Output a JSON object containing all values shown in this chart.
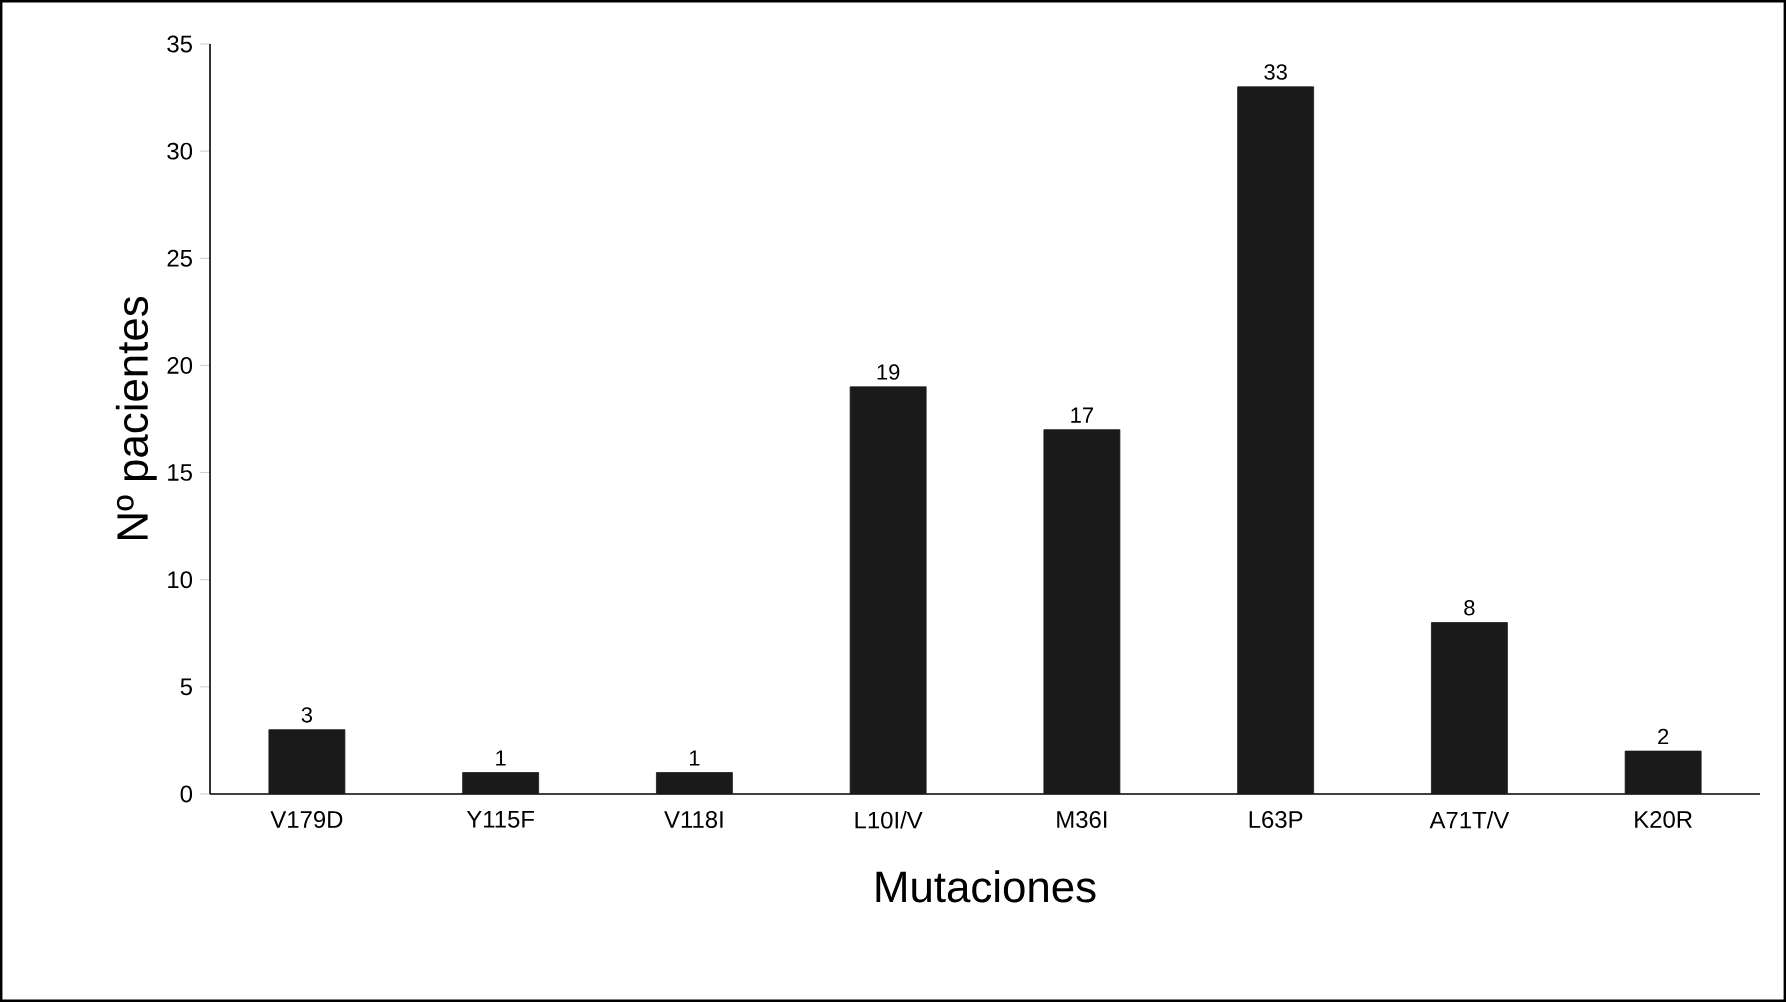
{
  "chart_data": {
    "type": "bar",
    "xlabel": "Mutaciones",
    "ylabel": "Nº pacientes",
    "categories": [
      "V179D",
      "Y115F",
      "V118I",
      "L10I/V",
      "M36I",
      "L63P",
      "A71T/V",
      "K20R"
    ],
    "values": [
      3,
      1,
      1,
      19,
      17,
      33,
      8,
      2
    ],
    "color": "#1a1a1a",
    "ylim": [
      0,
      35
    ],
    "yticks": [
      0,
      5,
      10,
      15,
      20,
      25,
      30,
      35
    ],
    "data_labels": true
  }
}
